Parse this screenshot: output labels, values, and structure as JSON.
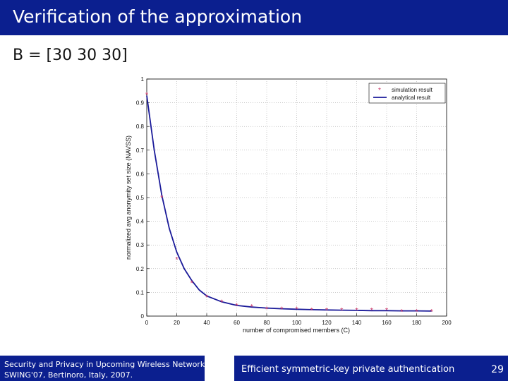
{
  "slide": {
    "title": "Verification of the approximation",
    "subtitle": "B = [30 30 30]"
  },
  "footer": {
    "left_line1": "Security and Privacy in Upcoming Wireless Networks",
    "left_line2": "SWING'07, Bertinoro, Italy, 2007.",
    "middle": "Efficient symmetric-key private authentication",
    "page_number": "29"
  },
  "chart_data": {
    "type": "line",
    "title": "",
    "xlabel": "number of compromised members (C)",
    "ylabel": "normalized avg anonymity set size (NAVSS)",
    "xlim": [
      0,
      200
    ],
    "ylim": [
      0,
      1
    ],
    "x_ticks": [
      "0",
      "20",
      "40",
      "60",
      "80",
      "100",
      "120",
      "140",
      "160",
      "180",
      "200"
    ],
    "y_ticks": [
      "0",
      "0.1",
      "0.2",
      "0.3",
      "0.4",
      "0.5",
      "0.6",
      "0.7",
      "0.8",
      "0.9",
      "1"
    ],
    "grid": true,
    "legend_position": "top-right",
    "series": [
      {
        "name": "simulation result",
        "style": "markers",
        "color": "#cc3366",
        "x": [
          0,
          10,
          20,
          30,
          40,
          50,
          60,
          70,
          80,
          90,
          100,
          110,
          120,
          130,
          140,
          150,
          160,
          170,
          180,
          190
        ],
        "y": [
          0.935,
          0.5,
          0.24,
          0.14,
          0.08,
          0.06,
          0.045,
          0.04,
          0.03,
          0.03,
          0.03,
          0.025,
          0.025,
          0.025,
          0.025,
          0.025,
          0.025,
          0.02,
          0.02,
          0.02
        ]
      },
      {
        "name": "analytical result",
        "style": "line",
        "color": "#1a1a99",
        "x": [
          0,
          5,
          10,
          15,
          20,
          25,
          30,
          35,
          40,
          50,
          60,
          70,
          80,
          90,
          100,
          110,
          120,
          130,
          140,
          150,
          160,
          170,
          180,
          190
        ],
        "y": [
          0.93,
          0.7,
          0.51,
          0.37,
          0.27,
          0.2,
          0.15,
          0.11,
          0.085,
          0.06,
          0.045,
          0.038,
          0.034,
          0.031,
          0.029,
          0.027,
          0.026,
          0.025,
          0.024,
          0.023,
          0.023,
          0.022,
          0.022,
          0.021
        ]
      }
    ]
  }
}
